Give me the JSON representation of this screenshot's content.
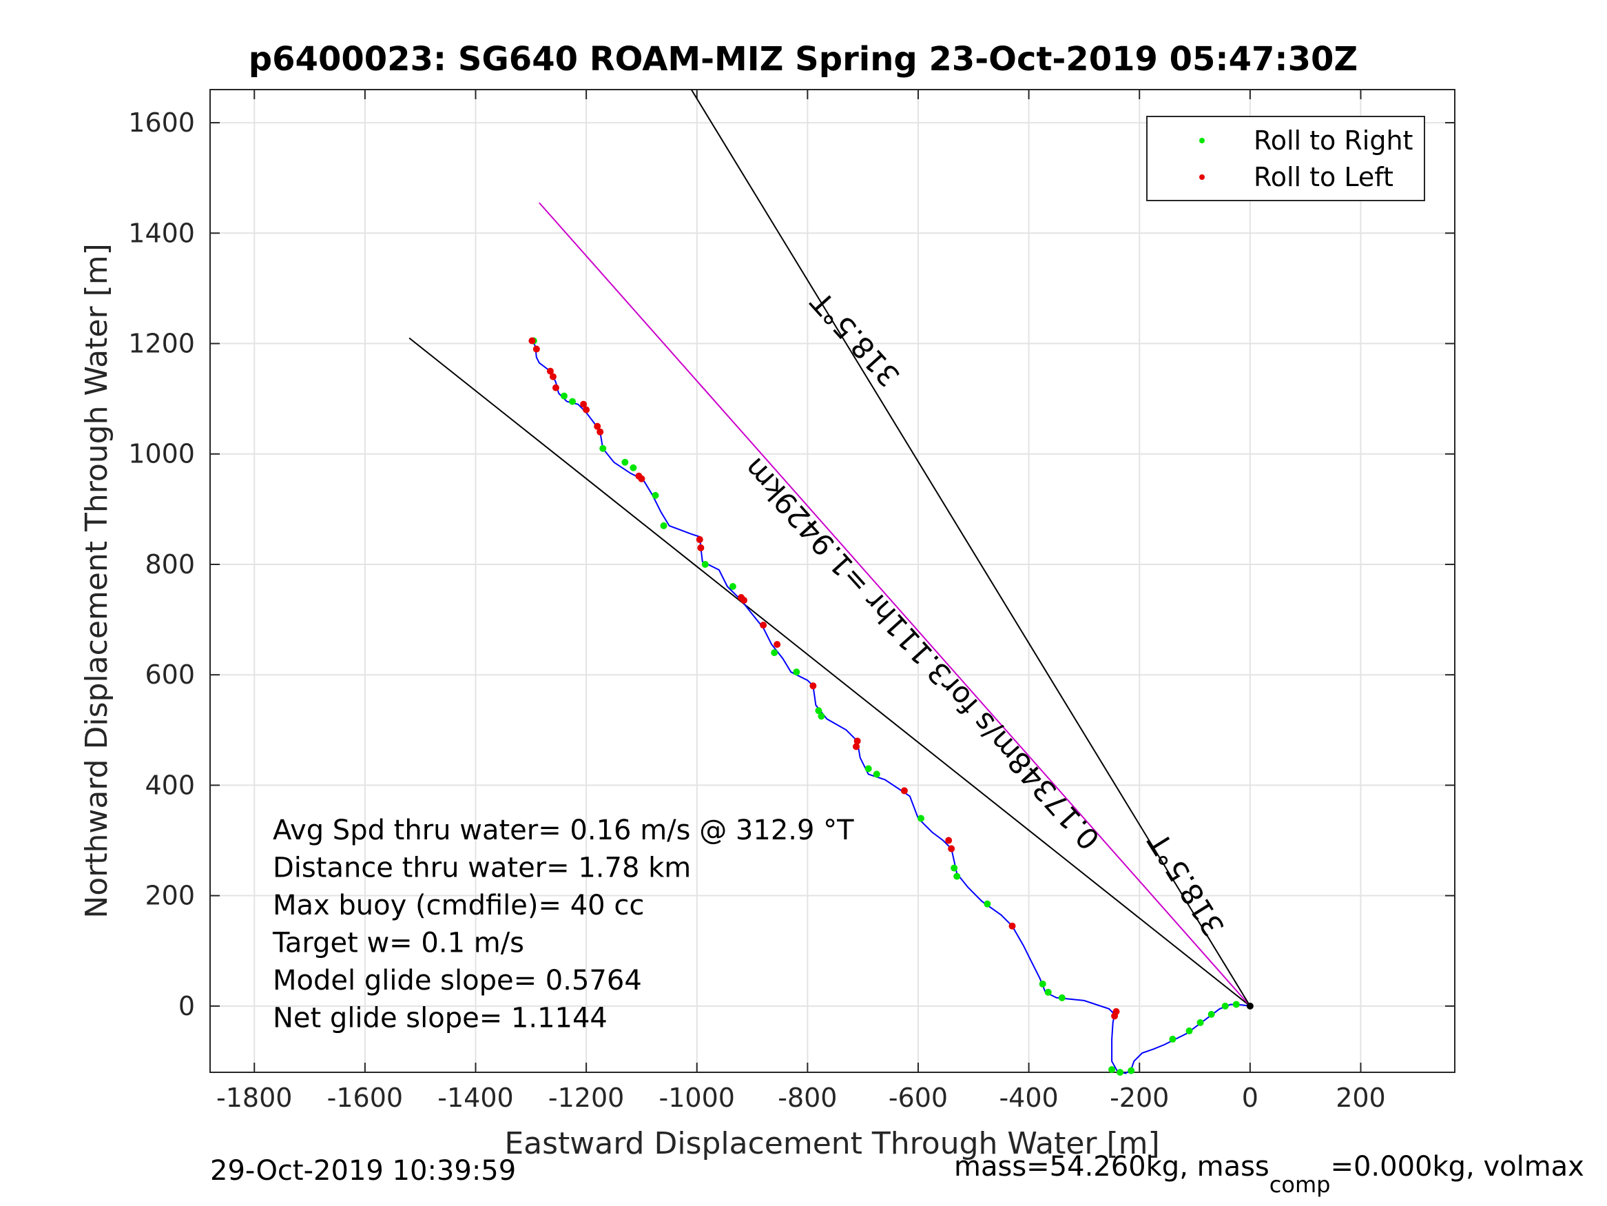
{
  "chart_data": {
    "type": "line",
    "title": "p6400023: SG640 ROAM-MIZ Spring 23-Oct-2019 05:47:30Z",
    "xlabel": "Eastward Displacement Through Water [m]",
    "ylabel": "Northward Displacement Through Water [m]",
    "xlim": [
      -1880,
      370
    ],
    "ylim": [
      -120,
      1660
    ],
    "xticks": [
      -1800,
      -1600,
      -1400,
      -1200,
      -1000,
      -800,
      -600,
      -400,
      -200,
      0,
      200
    ],
    "yticks": [
      0,
      200,
      400,
      600,
      800,
      1000,
      1200,
      1400,
      1600
    ],
    "grid": true,
    "legend_position": "top-right",
    "legend": [
      {
        "label": "Roll to Right",
        "color": "#00e600"
      },
      {
        "label": "Roll to Left",
        "color": "#e60000"
      }
    ],
    "track_color": "#0000ff",
    "track": [
      [
        0,
        0
      ],
      [
        -15,
        2
      ],
      [
        -35,
        3
      ],
      [
        -55,
        -5
      ],
      [
        -75,
        -20
      ],
      [
        -95,
        -35
      ],
      [
        -115,
        -50
      ],
      [
        -135,
        -60
      ],
      [
        -155,
        -70
      ],
      [
        -175,
        -78
      ],
      [
        -195,
        -85
      ],
      [
        -210,
        -100
      ],
      [
        -215,
        -115
      ],
      [
        -225,
        -122
      ],
      [
        -240,
        -118
      ],
      [
        -250,
        -100
      ],
      [
        -250,
        -60
      ],
      [
        -248,
        -30
      ],
      [
        -245,
        -15
      ],
      [
        -255,
        -5
      ],
      [
        -300,
        10
      ],
      [
        -350,
        15
      ],
      [
        -370,
        25
      ],
      [
        -380,
        50
      ],
      [
        -395,
        80
      ],
      [
        -410,
        110
      ],
      [
        -430,
        145
      ],
      [
        -450,
        165
      ],
      [
        -485,
        190
      ],
      [
        -510,
        215
      ],
      [
        -530,
        240
      ],
      [
        -540,
        285
      ],
      [
        -555,
        300
      ],
      [
        -575,
        315
      ],
      [
        -600,
        340
      ],
      [
        -615,
        380
      ],
      [
        -630,
        390
      ],
      [
        -660,
        410
      ],
      [
        -690,
        420
      ],
      [
        -705,
        450
      ],
      [
        -710,
        480
      ],
      [
        -730,
        500
      ],
      [
        -765,
        520
      ],
      [
        -785,
        545
      ],
      [
        -790,
        580
      ],
      [
        -800,
        590
      ],
      [
        -830,
        605
      ],
      [
        -845,
        630
      ],
      [
        -865,
        655
      ],
      [
        -880,
        685
      ],
      [
        -900,
        710
      ],
      [
        -920,
        735
      ],
      [
        -945,
        760
      ],
      [
        -960,
        790
      ],
      [
        -990,
        805
      ],
      [
        -993,
        830
      ],
      [
        -995,
        850
      ],
      [
        -1010,
        855
      ],
      [
        -1050,
        870
      ],
      [
        -1065,
        895
      ],
      [
        -1080,
        925
      ],
      [
        -1095,
        950
      ],
      [
        -1100,
        955
      ],
      [
        -1120,
        965
      ],
      [
        -1150,
        985
      ],
      [
        -1170,
        1010
      ],
      [
        -1175,
        1040
      ],
      [
        -1185,
        1055
      ],
      [
        -1200,
        1075
      ],
      [
        -1215,
        1090
      ],
      [
        -1235,
        1095
      ],
      [
        -1250,
        1110
      ],
      [
        -1255,
        1130
      ],
      [
        -1265,
        1150
      ],
      [
        -1285,
        1165
      ],
      [
        -1290,
        1175
      ],
      [
        -1292,
        1195
      ],
      [
        -1300,
        1210
      ]
    ],
    "roll_right": [
      [
        -25,
        3
      ],
      [
        -45,
        0
      ],
      [
        -70,
        -15
      ],
      [
        -90,
        -30
      ],
      [
        -110,
        -45
      ],
      [
        -140,
        -60
      ],
      [
        -215,
        -117
      ],
      [
        -235,
        -120
      ],
      [
        -250,
        -115
      ],
      [
        -340,
        15
      ],
      [
        -365,
        25
      ],
      [
        -375,
        40
      ],
      [
        -475,
        185
      ],
      [
        -530,
        235
      ],
      [
        -535,
        250
      ],
      [
        -595,
        340
      ],
      [
        -675,
        420
      ],
      [
        -690,
        430
      ],
      [
        -775,
        525
      ],
      [
        -780,
        535
      ],
      [
        -820,
        605
      ],
      [
        -860,
        640
      ],
      [
        -935,
        760
      ],
      [
        -985,
        800
      ],
      [
        -1060,
        870
      ],
      [
        -1075,
        925
      ],
      [
        -1115,
        975
      ],
      [
        -1130,
        985
      ],
      [
        -1170,
        1010
      ],
      [
        -1225,
        1095
      ],
      [
        -1240,
        1105
      ],
      [
        -1295,
        1205
      ]
    ],
    "roll_left": [
      [
        -242,
        -10
      ],
      [
        -245,
        -18
      ],
      [
        -430,
        145
      ],
      [
        -540,
        285
      ],
      [
        -545,
        300
      ],
      [
        -625,
        390
      ],
      [
        -710,
        480
      ],
      [
        -712,
        470
      ],
      [
        -790,
        580
      ],
      [
        -855,
        655
      ],
      [
        -880,
        690
      ],
      [
        -915,
        735
      ],
      [
        -920,
        740
      ],
      [
        -993,
        830
      ],
      [
        -995,
        845
      ],
      [
        -1100,
        955
      ],
      [
        -1105,
        960
      ],
      [
        -1175,
        1040
      ],
      [
        -1180,
        1050
      ],
      [
        -1200,
        1080
      ],
      [
        -1205,
        1090
      ],
      [
        -1255,
        1120
      ],
      [
        -1260,
        1140
      ],
      [
        -1265,
        1150
      ],
      [
        -1290,
        1190
      ],
      [
        -1298,
        1205
      ]
    ],
    "lines": [
      {
        "color": "#000000",
        "points": [
          [
            0,
            0
          ],
          [
            -1520,
            1210
          ]
        ]
      },
      {
        "color": "#cc00cc",
        "points": [
          [
            0,
            0
          ],
          [
            -1285,
            1455
          ]
        ]
      },
      {
        "color": "#000000",
        "points": [
          [
            0,
            0
          ],
          [
            -1010,
            1660
          ]
        ]
      }
    ],
    "annotations": [
      {
        "text": "318.5°T",
        "at": [
          -700,
          1220
        ],
        "rotate": 228
      },
      {
        "text": "0.17348m/s for3.111hr =1.9429km",
        "at": [
          -580,
          650
        ],
        "rotate": 228
      },
      {
        "text": "318.5°T",
        "at": [
          -100,
          230
        ],
        "rotate": 238
      }
    ],
    "stats_lines": [
      "Avg Spd thru water=  0.16 m/s @ 312.9 °T",
      "Distance thru water=  1.78 km",
      "Max buoy (cmdfile)= 40 cc",
      "Target w= 0.1 m/s",
      "Model glide slope= 0.5764",
      "Net glide slope= 1.1144"
    ]
  },
  "footer": {
    "timestamp": "29-Oct-2019 10:39:59",
    "mass_prefix": "mass=54.260kg, mass",
    "mass_sub": "comp",
    "mass_suffix": "=0.000kg, volmax"
  }
}
